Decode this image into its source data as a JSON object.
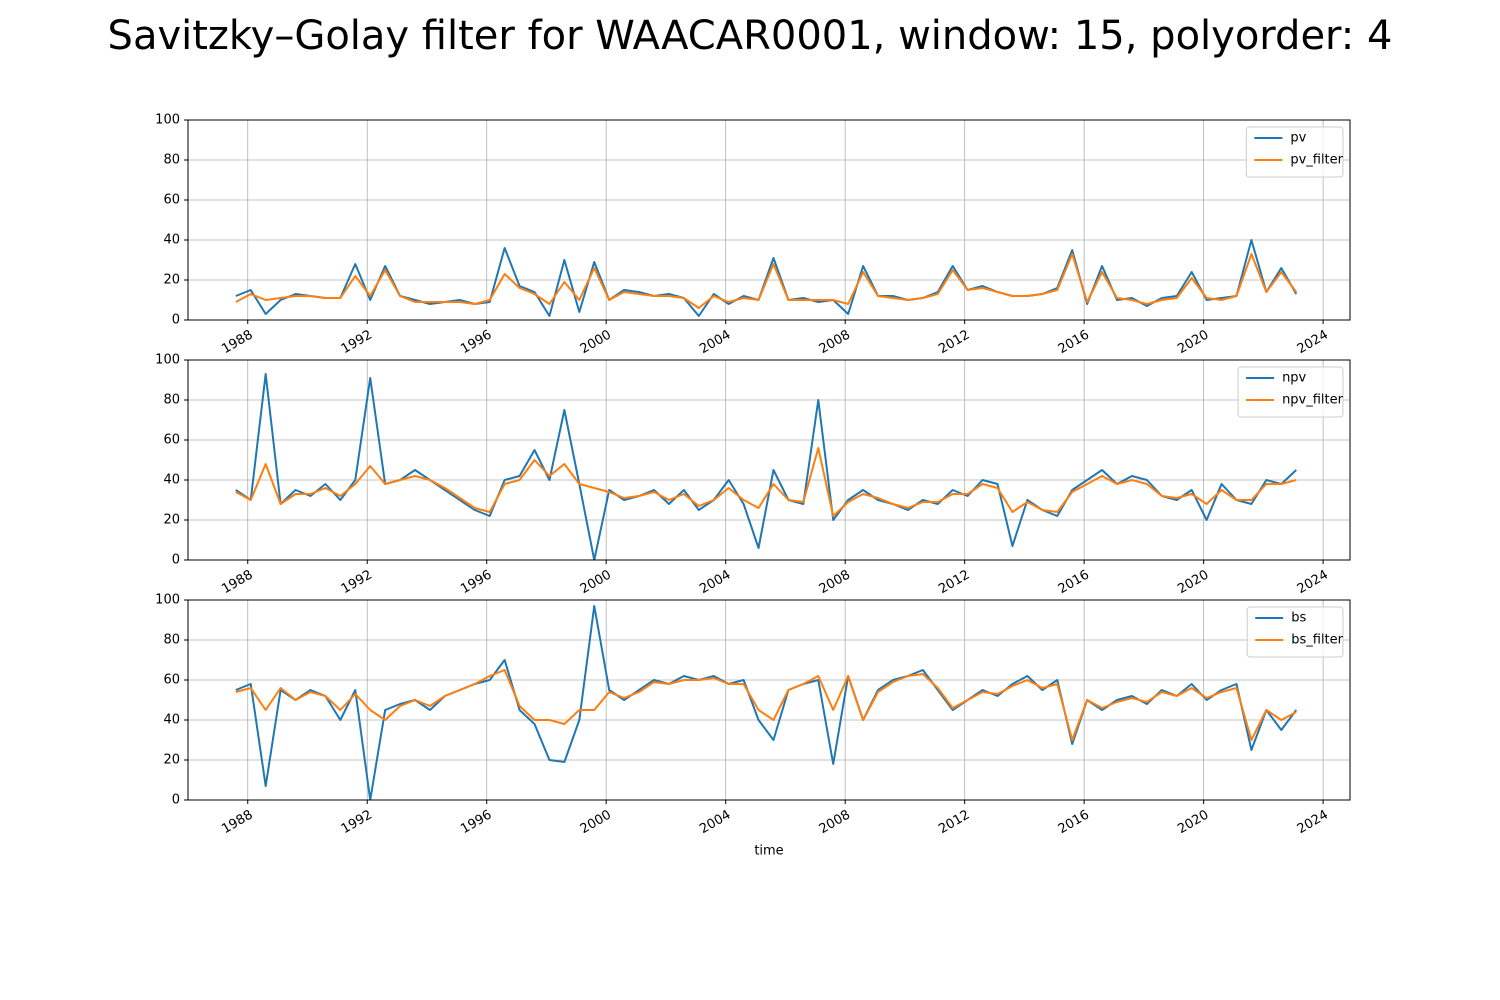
{
  "title": "Savitzky–Golay filter for WAACAR0001, window: 15, polyorder: 4",
  "chart_data": [
    {
      "type": "line",
      "legend": "upper right",
      "grid": true,
      "xlim": [
        1986.0,
        2024.9
      ],
      "xticks": [
        1988,
        1992,
        1996,
        2000,
        2004,
        2008,
        2012,
        2016,
        2020,
        2024
      ],
      "ylim": [
        0,
        100
      ],
      "yticks": [
        0,
        20,
        40,
        60,
        80,
        100
      ],
      "x": [
        1987.6,
        1988.1,
        1988.6,
        1989.1,
        1989.6,
        1990.1,
        1990.6,
        1991.1,
        1991.6,
        1992.1,
        1992.6,
        1993.1,
        1993.6,
        1994.1,
        1994.6,
        1995.1,
        1995.6,
        1996.1,
        1996.6,
        1997.1,
        1997.6,
        1998.1,
        1998.6,
        1999.1,
        1999.6,
        2000.1,
        2000.6,
        2001.1,
        2001.6,
        2002.1,
        2002.6,
        2003.1,
        2003.6,
        2004.1,
        2004.6,
        2005.1,
        2005.6,
        2006.1,
        2006.6,
        2007.1,
        2007.6,
        2008.1,
        2008.6,
        2009.1,
        2009.6,
        2010.1,
        2010.6,
        2011.1,
        2011.6,
        2012.1,
        2012.6,
        2013.1,
        2013.6,
        2014.1,
        2014.6,
        2015.1,
        2015.6,
        2016.1,
        2016.6,
        2017.1,
        2017.6,
        2018.1,
        2018.6,
        2019.1,
        2019.6,
        2020.1,
        2020.6,
        2021.1,
        2021.6,
        2022.1,
        2022.6,
        2023.1
      ],
      "series": [
        {
          "name": "pv",
          "color": "#1f77b4",
          "values": [
            12,
            15,
            3,
            10,
            13,
            12,
            11,
            11,
            28,
            10,
            27,
            12,
            10,
            8,
            9,
            10,
            8,
            9,
            36,
            17,
            14,
            2,
            30,
            4,
            29,
            10,
            15,
            14,
            12,
            13,
            11,
            2,
            13,
            8,
            12,
            10,
            31,
            10,
            11,
            9,
            10,
            3,
            27,
            12,
            12,
            10,
            11,
            14,
            27,
            15,
            17,
            14,
            12,
            12,
            13,
            16,
            35,
            8,
            27,
            10,
            11,
            7,
            11,
            12,
            24,
            10,
            11,
            12,
            40,
            14,
            26,
            13
          ]
        },
        {
          "name": "pv_filter",
          "color": "#ff7f0e",
          "values": [
            9,
            13,
            10,
            11,
            12,
            12,
            11,
            11,
            22,
            12,
            25,
            12,
            9,
            9,
            9,
            9,
            8,
            10,
            23,
            16,
            13,
            8,
            19,
            10,
            26,
            10,
            14,
            13,
            12,
            12,
            11,
            6,
            12,
            9,
            11,
            10,
            28,
            10,
            10,
            10,
            10,
            8,
            24,
            12,
            11,
            10,
            11,
            13,
            25,
            15,
            16,
            14,
            12,
            12,
            13,
            15,
            33,
            9,
            24,
            11,
            10,
            8,
            10,
            11,
            21,
            11,
            10,
            12,
            33,
            14,
            24,
            14
          ]
        }
      ]
    },
    {
      "type": "line",
      "legend": "upper right",
      "grid": true,
      "xlim": [
        1986.0,
        2024.9
      ],
      "xticks": [
        1988,
        1992,
        1996,
        2000,
        2004,
        2008,
        2012,
        2016,
        2020,
        2024
      ],
      "ylim": [
        0,
        100
      ],
      "yticks": [
        0,
        20,
        40,
        60,
        80,
        100
      ],
      "x": [
        1987.6,
        1988.1,
        1988.6,
        1989.1,
        1989.6,
        1990.1,
        1990.6,
        1991.1,
        1991.6,
        1992.1,
        1992.6,
        1993.1,
        1993.6,
        1994.1,
        1994.6,
        1995.1,
        1995.6,
        1996.1,
        1996.6,
        1997.1,
        1997.6,
        1998.1,
        1998.6,
        1999.1,
        1999.6,
        2000.1,
        2000.6,
        2001.1,
        2001.6,
        2002.1,
        2002.6,
        2003.1,
        2003.6,
        2004.1,
        2004.6,
        2005.1,
        2005.6,
        2006.1,
        2006.6,
        2007.1,
        2007.6,
        2008.1,
        2008.6,
        2009.1,
        2009.6,
        2010.1,
        2010.6,
        2011.1,
        2011.6,
        2012.1,
        2012.6,
        2013.1,
        2013.6,
        2014.1,
        2014.6,
        2015.1,
        2015.6,
        2016.1,
        2016.6,
        2017.1,
        2017.6,
        2018.1,
        2018.6,
        2019.1,
        2019.6,
        2020.1,
        2020.6,
        2021.1,
        2021.6,
        2022.1,
        2022.6,
        2023.1
      ],
      "series": [
        {
          "name": "npv",
          "color": "#1f77b4",
          "values": [
            35,
            30,
            93,
            28,
            35,
            32,
            38,
            30,
            40,
            91,
            38,
            40,
            45,
            40,
            35,
            30,
            25,
            22,
            40,
            42,
            55,
            40,
            75,
            38,
            0,
            35,
            30,
            32,
            35,
            28,
            35,
            25,
            30,
            40,
            28,
            6,
            45,
            30,
            28,
            80,
            20,
            30,
            35,
            30,
            28,
            25,
            30,
            28,
            35,
            32,
            40,
            38,
            7,
            30,
            25,
            22,
            35,
            40,
            45,
            38,
            42,
            40,
            32,
            30,
            35,
            20,
            38,
            30,
            28,
            40,
            38,
            45
          ]
        },
        {
          "name": "npv_filter",
          "color": "#ff7f0e",
          "values": [
            34,
            30,
            48,
            28,
            33,
            33,
            36,
            32,
            38,
            47,
            38,
            40,
            42,
            40,
            36,
            31,
            26,
            24,
            38,
            40,
            50,
            42,
            48,
            38,
            36,
            34,
            31,
            32,
            34,
            30,
            33,
            27,
            30,
            36,
            30,
            26,
            38,
            30,
            29,
            56,
            22,
            29,
            33,
            31,
            28,
            26,
            29,
            29,
            33,
            33,
            38,
            36,
            24,
            29,
            25,
            24,
            34,
            38,
            42,
            38,
            40,
            38,
            32,
            31,
            33,
            28,
            35,
            30,
            30,
            38,
            38,
            40
          ]
        }
      ]
    },
    {
      "type": "line",
      "legend": "upper right",
      "grid": true,
      "xlabel": "time",
      "xlim": [
        1986.0,
        2024.9
      ],
      "xticks": [
        1988,
        1992,
        1996,
        2000,
        2004,
        2008,
        2012,
        2016,
        2020,
        2024
      ],
      "ylim": [
        0,
        100
      ],
      "yticks": [
        0,
        20,
        40,
        60,
        80,
        100
      ],
      "x": [
        1987.6,
        1988.1,
        1988.6,
        1989.1,
        1989.6,
        1990.1,
        1990.6,
        1991.1,
        1991.6,
        1992.1,
        1992.6,
        1993.1,
        1993.6,
        1994.1,
        1994.6,
        1995.1,
        1995.6,
        1996.1,
        1996.6,
        1997.1,
        1997.6,
        1998.1,
        1998.6,
        1999.1,
        1999.6,
        2000.1,
        2000.6,
        2001.1,
        2001.6,
        2002.1,
        2002.6,
        2003.1,
        2003.6,
        2004.1,
        2004.6,
        2005.1,
        2005.6,
        2006.1,
        2006.6,
        2007.1,
        2007.6,
        2008.1,
        2008.6,
        2009.1,
        2009.6,
        2010.1,
        2010.6,
        2011.1,
        2011.6,
        2012.1,
        2012.6,
        2013.1,
        2013.6,
        2014.1,
        2014.6,
        2015.1,
        2015.6,
        2016.1,
        2016.6,
        2017.1,
        2017.6,
        2018.1,
        2018.6,
        2019.1,
        2019.6,
        2020.1,
        2020.6,
        2021.1,
        2021.6,
        2022.1,
        2022.6,
        2023.1
      ],
      "series": [
        {
          "name": "bs",
          "color": "#1f77b4",
          "values": [
            55,
            58,
            7,
            55,
            50,
            55,
            52,
            40,
            55,
            0,
            45,
            48,
            50,
            45,
            52,
            55,
            58,
            60,
            70,
            45,
            38,
            20,
            19,
            40,
            97,
            55,
            50,
            55,
            60,
            58,
            62,
            60,
            62,
            58,
            60,
            40,
            30,
            55,
            58,
            60,
            18,
            62,
            40,
            55,
            60,
            62,
            65,
            55,
            45,
            50,
            55,
            52,
            58,
            62,
            55,
            60,
            28,
            50,
            45,
            50,
            52,
            48,
            55,
            52,
            58,
            50,
            55,
            58,
            25,
            45,
            35,
            45
          ]
        },
        {
          "name": "bs_filter",
          "color": "#ff7f0e",
          "values": [
            54,
            56,
            45,
            56,
            50,
            54,
            52,
            45,
            53,
            45,
            40,
            47,
            50,
            47,
            52,
            55,
            58,
            62,
            65,
            47,
            40,
            40,
            38,
            45,
            45,
            54,
            51,
            54,
            59,
            58,
            60,
            60,
            61,
            58,
            58,
            45,
            40,
            55,
            58,
            62,
            45,
            62,
            40,
            54,
            59,
            62,
            63,
            56,
            46,
            50,
            54,
            53,
            57,
            60,
            56,
            58,
            30,
            50,
            46,
            49,
            51,
            49,
            54,
            52,
            56,
            51,
            54,
            56,
            30,
            45,
            40,
            44
          ]
        }
      ]
    }
  ]
}
